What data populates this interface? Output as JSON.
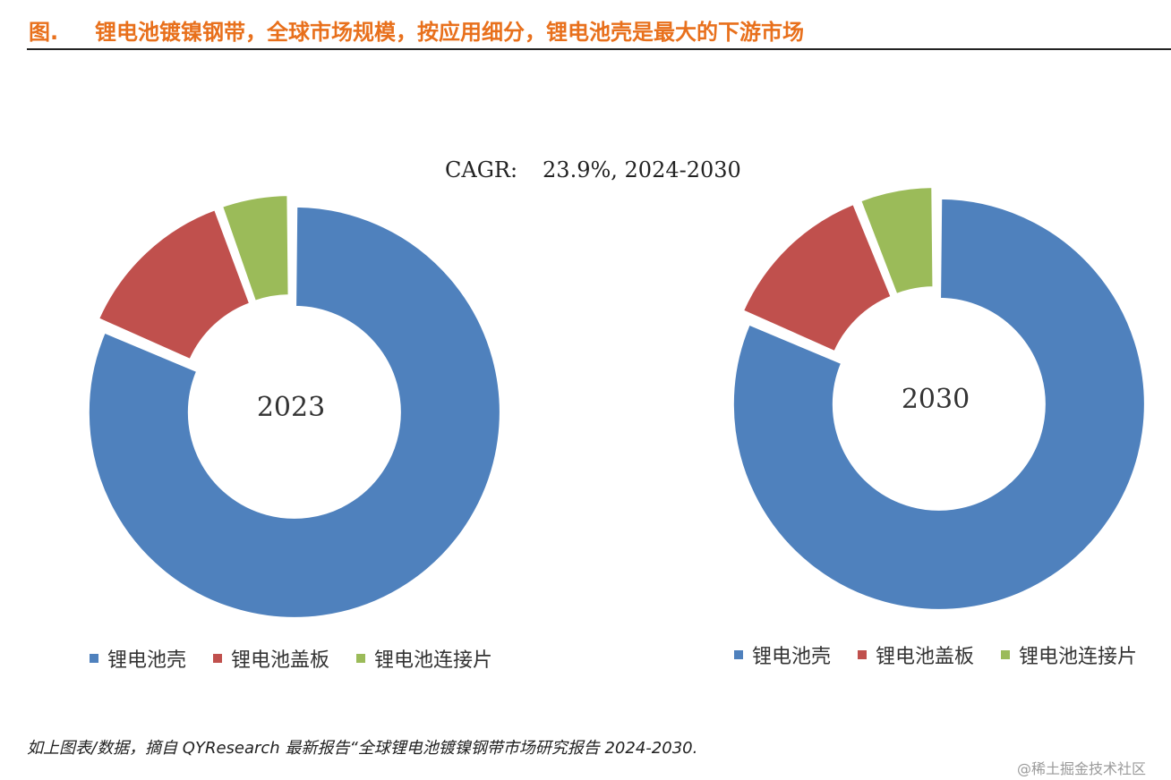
{
  "header": {
    "prefix": "图.",
    "title": "锂电池镀镍钢带，全球市场规模，按应用细分，锂电池壳是最大的下游市场"
  },
  "annotation": {
    "label": "CAGR:",
    "value": "23.9%, 2024-2030"
  },
  "colors": {
    "header_text": "#e8701c",
    "shell": "#4f81bd",
    "cover": "#c0504d",
    "connector": "#9bbb59"
  },
  "chart_data": [
    {
      "type": "pie",
      "center_label": "2023",
      "categories": [
        "锂电池壳",
        "锂电池盖板",
        "锂电池连接片"
      ],
      "values": [
        81.5,
        13.0,
        5.5
      ],
      "colors": [
        "#4f81bd",
        "#c0504d",
        "#9bbb59"
      ],
      "legend_position": "bottom"
    },
    {
      "type": "pie",
      "center_label": "2030",
      "categories": [
        "锂电池壳",
        "锂电池盖板",
        "锂电池连接片"
      ],
      "values": [
        81.5,
        12.5,
        6.0
      ],
      "colors": [
        "#4f81bd",
        "#c0504d",
        "#9bbb59"
      ],
      "legend_position": "bottom"
    }
  ],
  "footnote": "如上图表/数据，摘自 QYResearch 最新报告“全球锂电池镀镍钢带市场研究报告 2024-2030.",
  "watermark": "@稀土掘金技术社区"
}
